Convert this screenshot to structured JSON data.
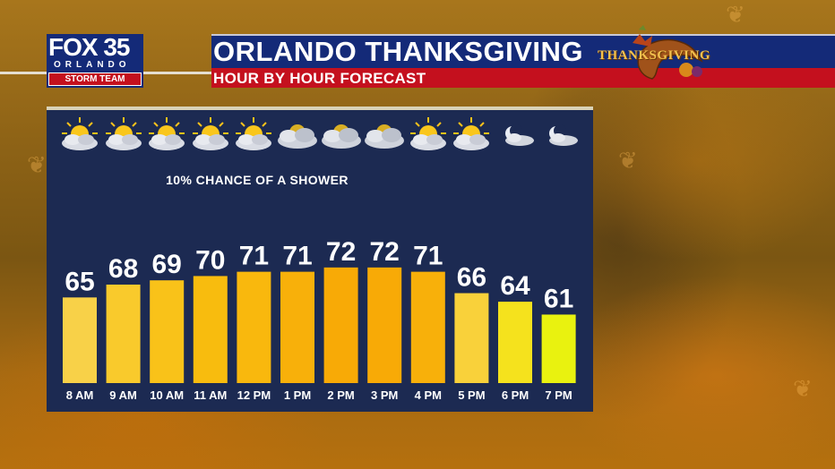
{
  "header": {
    "title": "ORLANDO THANKSGIVING",
    "subtitle": "HOUR BY HOUR FORECAST"
  },
  "logo": {
    "main": "FOX 35",
    "city": "ORLANDO",
    "team": "STORM TEAM"
  },
  "graphic": {
    "wordmark": "THANKSGIVING"
  },
  "forecast": {
    "note": "10% CHANCE OF A SHOWER",
    "icons": [
      "partly-cloudy-icon",
      "partly-cloudy-icon",
      "partly-cloudy-icon",
      "partly-cloudy-icon",
      "partly-cloudy-icon",
      "mostly-cloudy-icon",
      "mostly-cloudy-icon",
      "mostly-cloudy-icon",
      "partly-cloudy-icon",
      "partly-cloudy-icon",
      "partly-cloudy-night-icon",
      "partly-cloudy-night-icon"
    ]
  },
  "colors": {
    "header_blue": "#142a78",
    "header_red": "#c4101e",
    "panel": "#1c2a52",
    "bars": [
      "#f8d148",
      "#f9ca2c",
      "#f9c219",
      "#f8bc0e",
      "#f9b80d",
      "#f8b00a",
      "#f8aa06",
      "#f8aa06",
      "#f8b00a",
      "#f9d13a",
      "#f5e21d",
      "#e9f20f"
    ]
  },
  "chart_data": {
    "type": "bar",
    "title": "",
    "categories": [
      "8 AM",
      "9 AM",
      "10 AM",
      "11 AM",
      "12 PM",
      "1 PM",
      "2 PM",
      "3 PM",
      "4 PM",
      "5 PM",
      "6 PM",
      "7 PM"
    ],
    "values": [
      65,
      68,
      69,
      70,
      71,
      71,
      72,
      72,
      71,
      66,
      64,
      61
    ],
    "xlabel": "",
    "ylabel": "",
    "unit": "°F",
    "ylim": [
      45,
      82
    ],
    "grid": false,
    "data_labels": true
  }
}
